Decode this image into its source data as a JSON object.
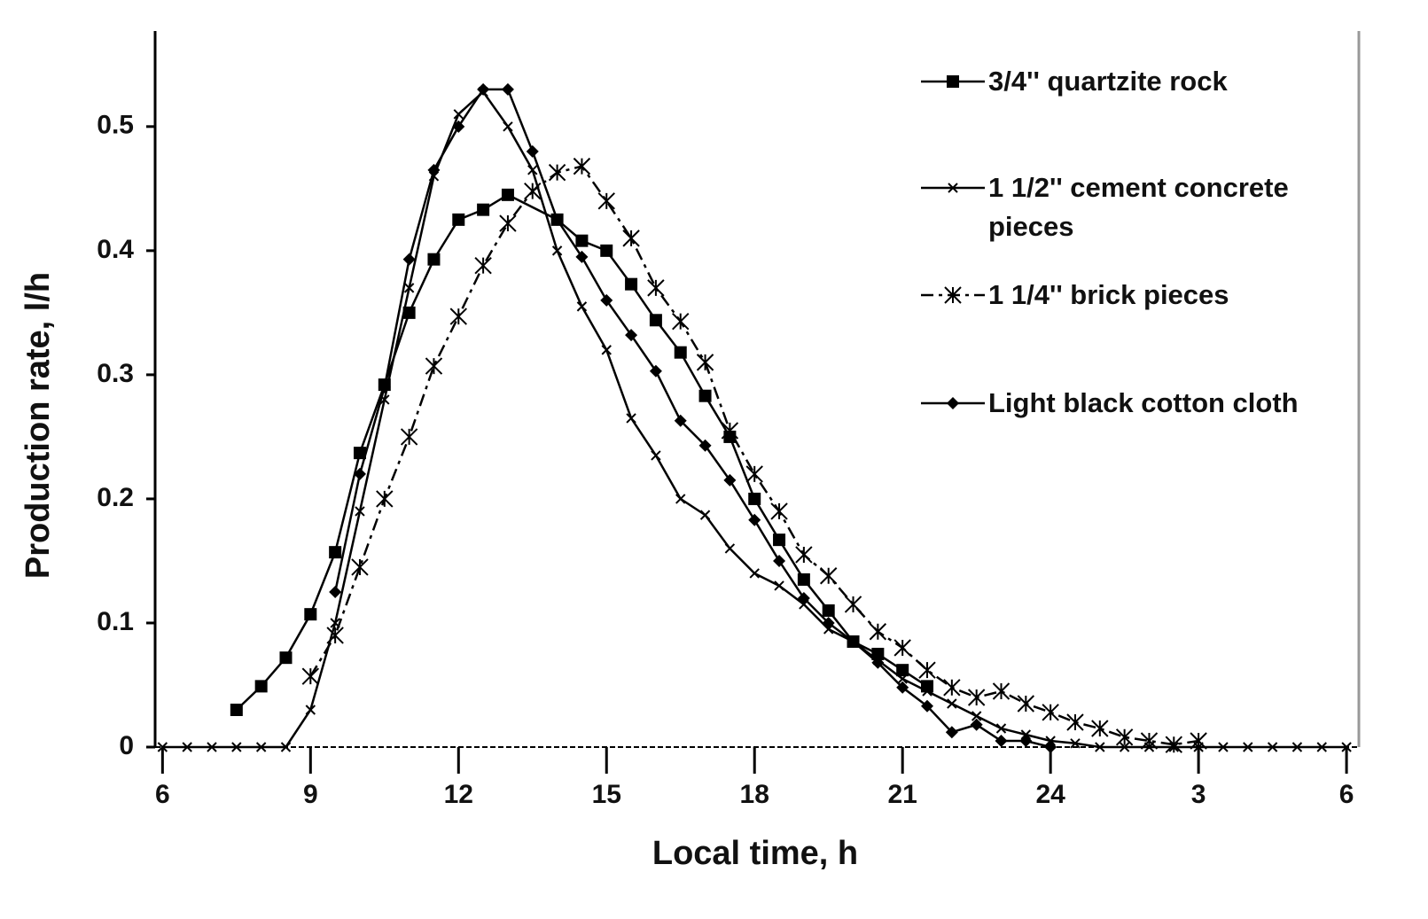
{
  "chart_data": {
    "type": "line",
    "xlabel": "Local time,  h",
    "ylabel": "Production rate,  l/h",
    "xlim": [
      5.85,
      30.25
    ],
    "ylim": [
      0,
      0.577
    ],
    "xticks": [
      6,
      9,
      12,
      15,
      18,
      21,
      24,
      {
        "value": 27,
        "label": "3"
      },
      {
        "value": 30,
        "label": "6"
      }
    ],
    "yticks": [
      0,
      0.1,
      0.2,
      0.3,
      0.4,
      0.5
    ],
    "legend": "upper right",
    "series": [
      {
        "name": "3/4'' quartzite rock",
        "color": "#000000",
        "marker": "square",
        "line_style": "solid",
        "x": [
          7.5,
          8,
          8.5,
          9,
          9.5,
          10,
          10.5,
          11,
          11.5,
          12,
          12.5,
          13,
          14,
          14.5,
          15,
          15.5,
          16,
          16.5,
          17,
          17.5,
          18,
          18.5,
          19,
          19.5,
          20,
          20.5,
          21,
          21.5
        ],
        "values": [
          0.03,
          0.049,
          0.072,
          0.107,
          0.157,
          0.237,
          0.292,
          0.35,
          0.393,
          0.425,
          0.433,
          0.445,
          0.425,
          0.408,
          0.4,
          0.373,
          0.344,
          0.318,
          0.283,
          0.25,
          0.2,
          0.167,
          0.135,
          0.11,
          0.085,
          0.075,
          0.062,
          0.049
        ]
      },
      {
        "name": "1 1/2'' cement concrete pieces",
        "color": "#000000",
        "marker": "x",
        "line_style": "solid",
        "x": [
          6,
          6.5,
          7,
          7.5,
          8,
          8.5,
          9,
          9.5,
          10,
          10.5,
          11,
          11.5,
          12,
          12.5,
          13,
          13.5,
          14,
          14.5,
          15,
          15.5,
          16,
          16.5,
          17,
          17.5,
          18,
          18.5,
          19,
          19.5,
          20,
          20.5,
          21,
          21.5,
          22,
          22.5,
          23,
          23.5,
          24,
          24.5,
          25,
          25.5,
          26,
          26.5,
          27,
          27.5,
          28,
          28.5,
          29,
          29.5,
          30
        ],
        "values": [
          0,
          0,
          0,
          0,
          0,
          0,
          0.03,
          0.1,
          0.19,
          0.28,
          0.37,
          0.46,
          0.51,
          0.528,
          0.5,
          0.465,
          0.4,
          0.355,
          0.32,
          0.265,
          0.235,
          0.2,
          0.187,
          0.16,
          0.14,
          0.13,
          0.115,
          0.095,
          0.085,
          0.07,
          0.055,
          0.045,
          0.035,
          0.025,
          0.015,
          0.01,
          0.005,
          0.003,
          0,
          0,
          0,
          0,
          0,
          0,
          0,
          0,
          0,
          0,
          0
        ]
      },
      {
        "name": "1 1/4'' brick pieces",
        "color": "#000000",
        "marker": "asterisk",
        "line_style": "dashdot",
        "x": [
          9,
          9.5,
          10,
          10.5,
          11,
          11.5,
          12,
          12.5,
          13,
          13.5,
          14,
          14.5,
          15,
          15.5,
          16,
          16.5,
          17,
          17.5,
          18,
          18.5,
          19,
          19.5,
          20,
          20.5,
          21,
          21.5,
          22,
          22.5,
          23,
          23.5,
          24,
          24.5,
          25,
          25.5,
          26,
          26.5,
          27
        ],
        "values": [
          0.057,
          0.09,
          0.145,
          0.2,
          0.25,
          0.307,
          0.347,
          0.388,
          0.422,
          0.448,
          0.463,
          0.468,
          0.44,
          0.41,
          0.37,
          0.343,
          0.31,
          0.255,
          0.22,
          0.19,
          0.155,
          0.138,
          0.115,
          0.093,
          0.08,
          0.062,
          0.048,
          0.04,
          0.045,
          0.035,
          0.028,
          0.02,
          0.015,
          0.008,
          0.005,
          0.002,
          0.005
        ]
      },
      {
        "name": "Light black cotton cloth",
        "color": "#000000",
        "marker": "diamond",
        "line_style": "solid",
        "x": [
          9.5,
          10,
          10.5,
          11,
          11.5,
          12,
          12.5,
          13,
          13.5,
          14,
          14.5,
          15,
          15.5,
          16,
          16.5,
          17,
          17.5,
          18,
          18.5,
          19,
          19.5,
          20,
          20.5,
          21,
          21.5,
          22,
          22.5,
          23,
          23.5,
          24
        ],
        "values": [
          0.125,
          0.22,
          0.29,
          0.393,
          0.465,
          0.5,
          0.53,
          0.53,
          0.48,
          0.425,
          0.395,
          0.36,
          0.332,
          0.303,
          0.263,
          0.243,
          0.215,
          0.183,
          0.15,
          0.12,
          0.1,
          0.085,
          0.068,
          0.048,
          0.033,
          0.012,
          0.018,
          0.005,
          0.005,
          0
        ]
      }
    ]
  }
}
